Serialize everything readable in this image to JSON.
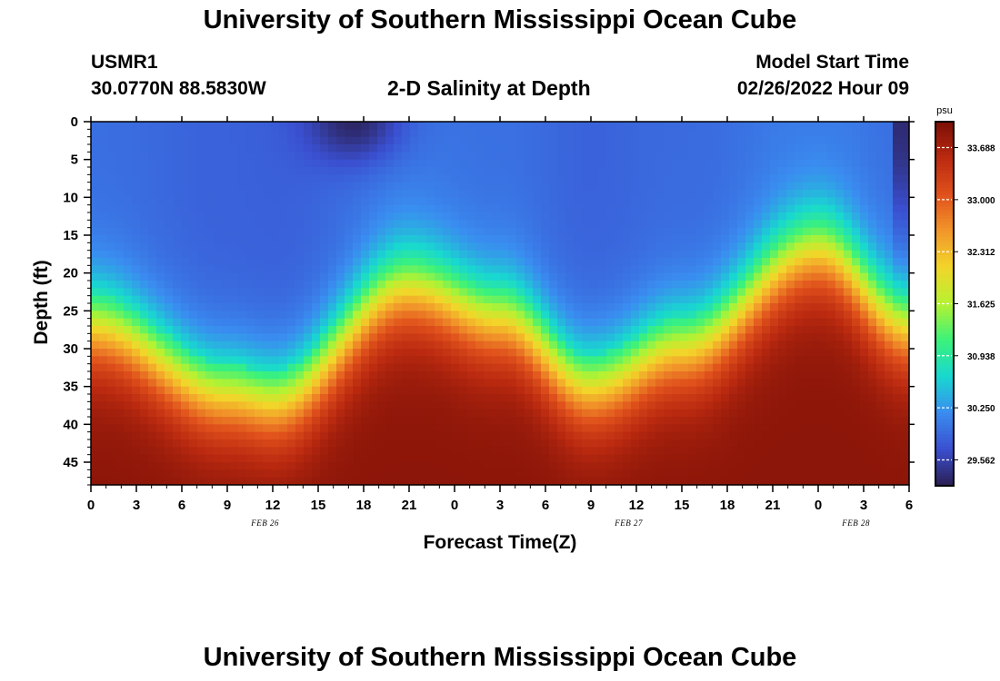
{
  "header": {
    "title": "University of Southern Mississippi Ocean Cube",
    "station_id": "USMR1",
    "coordinates": "30.0770N  88.5830W",
    "plot_title": "2-D Salinity at Depth",
    "model_start_label": "Model Start Time",
    "model_start_value": "02/26/2022 Hour 09"
  },
  "footer": {
    "repeated_title": "University of Southern Mississippi Ocean Cube"
  },
  "chart_data": {
    "type": "heatmap",
    "title": "2-D Salinity at Depth",
    "xlabel": "Forecast Time(Z)",
    "ylabel": "Depth (ft)",
    "x_tick_labels": [
      "0",
      "3",
      "6",
      "9",
      "12",
      "15",
      "18",
      "21",
      "0",
      "3",
      "6",
      "9",
      "12",
      "15",
      "18",
      "21",
      "0",
      "3",
      "6"
    ],
    "x_range_hours": [
      0,
      54
    ],
    "date_labels": [
      {
        "text": "FEB 26",
        "hour": 11.5
      },
      {
        "text": "FEB 27",
        "hour": 35.5
      },
      {
        "text": "FEB 28",
        "hour": 50.5
      }
    ],
    "y_tick_labels": [
      "0",
      "5",
      "10",
      "15",
      "20",
      "25",
      "30",
      "35",
      "40",
      "45"
    ],
    "y_range_ft": [
      0,
      48
    ],
    "colorbar": {
      "unit": "psu",
      "min": 29.22,
      "max": 34.03,
      "tick_labels": [
        "33.688",
        "33.000",
        "32.312",
        "31.625",
        "30.938",
        "30.250",
        "29.562"
      ],
      "tick_values": [
        33.688,
        33.0,
        32.312,
        31.625,
        30.938,
        30.25,
        29.562
      ],
      "colors": [
        "#2a1f52",
        "#3a4fd0",
        "#3a8cf0",
        "#18d8d0",
        "#3bf27a",
        "#b6f231",
        "#f3d52a",
        "#f2962a",
        "#e0511c",
        "#bb2a10",
        "#7a0e06"
      ]
    },
    "surface_salinity_psu": 29.5,
    "bottom_salinity_psu": 33.9,
    "halocline_depth_ft_at_hours": [
      {
        "hour": 0,
        "depth": 27
      },
      {
        "hour": 9,
        "depth": 36
      },
      {
        "hour": 12,
        "depth": 37
      },
      {
        "hour": 21,
        "depth": 22
      },
      {
        "hour": 27,
        "depth": 26
      },
      {
        "hour": 33,
        "depth": 35
      },
      {
        "hour": 39,
        "depth": 30
      },
      {
        "hour": 48,
        "depth": 17
      },
      {
        "hour": 54,
        "depth": 27
      }
    ]
  }
}
